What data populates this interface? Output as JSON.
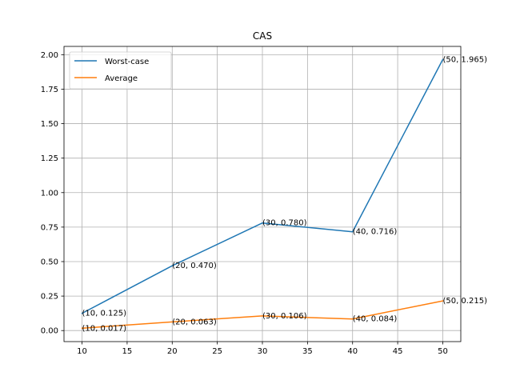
{
  "chart_data": {
    "type": "line",
    "title": "CAS",
    "xlabel": "",
    "ylabel": "",
    "x": [
      10,
      20,
      30,
      40,
      50
    ],
    "xlim": [
      8,
      52
    ],
    "ylim": [
      -0.08,
      2.06
    ],
    "xticks": [
      "10",
      "15",
      "20",
      "25",
      "30",
      "35",
      "40",
      "45",
      "50"
    ],
    "yticks": [
      "0.00",
      "0.25",
      "0.50",
      "0.75",
      "1.00",
      "1.25",
      "1.50",
      "1.75",
      "2.00"
    ],
    "grid": true,
    "legend_position": "top-left",
    "series": [
      {
        "name": "Worst-case",
        "color": "#1f77b4",
        "values": [
          0.125,
          0.47,
          0.78,
          0.716,
          1.965
        ],
        "labels": [
          "(10, 0.125)",
          "(20, 0.470)",
          "(30, 0.780)",
          "(40, 0.716)",
          "(50, 1.965)"
        ]
      },
      {
        "name": "Average",
        "color": "#ff7f0e",
        "values": [
          0.017,
          0.063,
          0.106,
          0.084,
          0.215
        ],
        "labels": [
          "(10, 0.017)",
          "(20, 0.063)",
          "(30, 0.106)",
          "(40, 0.084)",
          "(50, 0.215)"
        ]
      }
    ]
  }
}
